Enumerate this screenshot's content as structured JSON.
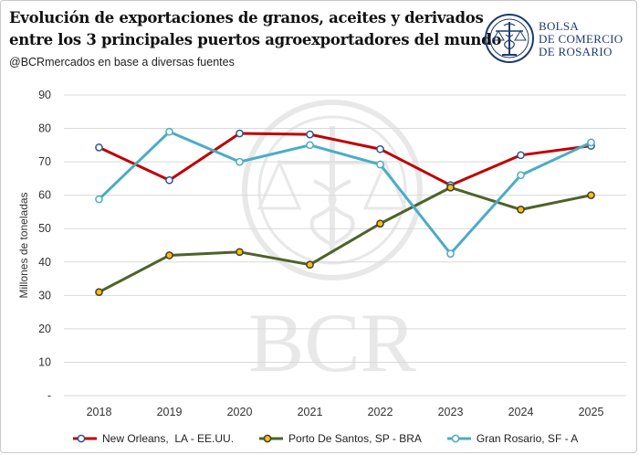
{
  "header": {
    "title_line1": "Evolución de exportaciones de granos, aceites y derivados",
    "title_line2": "entre los 3 principales puertos agroexportadores del mundo",
    "subtitle": "@BCRmercados  en base a diversas fuentes"
  },
  "logo": {
    "line1": "BOLSA",
    "line2": "DE COMERCIO",
    "line3": "DE ROSARIO",
    "icon": "caduceus-scales-seal-icon",
    "color": "#1f3b6e"
  },
  "watermark": {
    "text": "BCR",
    "icon": "caduceus-scales-seal-icon"
  },
  "chart_data": {
    "type": "line",
    "title": "",
    "xlabel": "",
    "ylabel": "Millones de toneladas",
    "categories": [
      "2018",
      "2019",
      "2020",
      "2021",
      "2022",
      "2023",
      "2024",
      "2025"
    ],
    "y_ticks": [
      "-",
      "10",
      "20",
      "30",
      "40",
      "50",
      "60",
      "70",
      "80",
      "90"
    ],
    "ylim": [
      0,
      90
    ],
    "grid": "horizontal",
    "legend_position": "bottom",
    "series": [
      {
        "name": "New Orleans,  LA - EE.UU.",
        "values": [
          74.3,
          64.5,
          78.5,
          78.2,
          73.8,
          63.0,
          72.0,
          74.8
        ],
        "line_color": "#c00000",
        "marker_fill": "#ffffff",
        "marker_stroke": "#2e5597"
      },
      {
        "name": "Porto De Santos, SP - BRA",
        "values": [
          31.0,
          42.0,
          43.0,
          39.2,
          51.5,
          62.3,
          55.7,
          60.0
        ],
        "line_color": "#4f6228",
        "marker_fill": "#ffc000",
        "marker_stroke": "#3d3d3d"
      },
      {
        "name": "Gran Rosario, SF - A",
        "values": [
          58.8,
          79.0,
          70.0,
          75.0,
          69.2,
          42.5,
          66.0,
          75.8
        ],
        "line_color": "#4bacc6",
        "marker_fill": "#ffffff",
        "marker_stroke": "#4bacc6"
      }
    ]
  }
}
